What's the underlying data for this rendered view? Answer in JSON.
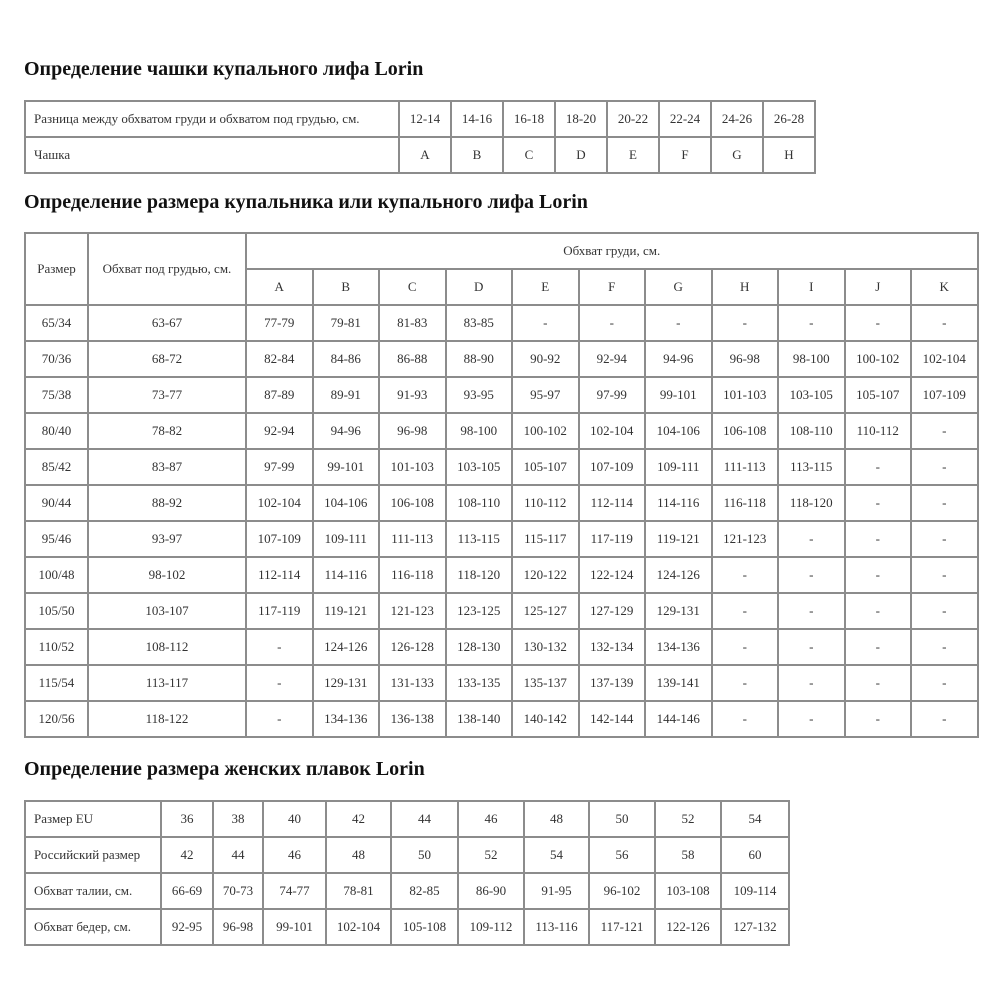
{
  "cup_section": {
    "title": "Определение чашки купального лифа Lorin",
    "rows": [
      {
        "label": "Разница между обхватом груди и обхватом под грудью, см.",
        "values": [
          "12-14",
          "14-16",
          "16-18",
          "18-20",
          "20-22",
          "22-24",
          "24-26",
          "26-28"
        ]
      },
      {
        "label": "Чашка",
        "values": [
          "A",
          "B",
          "C",
          "D",
          "E",
          "F",
          "G",
          "H"
        ]
      }
    ]
  },
  "bra_section": {
    "title": "Определение размера купальника или купального лифа Lorin",
    "header": {
      "size": "Размер",
      "underbust": "Обхват под грудью, см.",
      "bust": "Обхват груди, см.",
      "cups": [
        "A",
        "B",
        "C",
        "D",
        "E",
        "F",
        "G",
        "H",
        "I",
        "J",
        "K"
      ]
    },
    "rows": [
      {
        "size": "65/34",
        "underbust": "63-67",
        "values": [
          "77-79",
          "79-81",
          "81-83",
          "83-85",
          "-",
          "-",
          "-",
          "-",
          "-",
          "-",
          "-"
        ]
      },
      {
        "size": "70/36",
        "underbust": "68-72",
        "values": [
          "82-84",
          "84-86",
          "86-88",
          "88-90",
          "90-92",
          "92-94",
          "94-96",
          "96-98",
          "98-100",
          "100-102",
          "102-104"
        ]
      },
      {
        "size": "75/38",
        "underbust": "73-77",
        "values": [
          "87-89",
          "89-91",
          "91-93",
          "93-95",
          "95-97",
          "97-99",
          "99-101",
          "101-103",
          "103-105",
          "105-107",
          "107-109"
        ]
      },
      {
        "size": "80/40",
        "underbust": "78-82",
        "values": [
          "92-94",
          "94-96",
          "96-98",
          "98-100",
          "100-102",
          "102-104",
          "104-106",
          "106-108",
          "108-110",
          "110-112",
          "-"
        ]
      },
      {
        "size": "85/42",
        "underbust": "83-87",
        "values": [
          "97-99",
          "99-101",
          "101-103",
          "103-105",
          "105-107",
          "107-109",
          "109-111",
          "111-113",
          "113-115",
          "-",
          "-"
        ]
      },
      {
        "size": "90/44",
        "underbust": "88-92",
        "values": [
          "102-104",
          "104-106",
          "106-108",
          "108-110",
          "110-112",
          "112-114",
          "114-116",
          "116-118",
          "118-120",
          "-",
          "-"
        ]
      },
      {
        "size": "95/46",
        "underbust": "93-97",
        "values": [
          "107-109",
          "109-111",
          "111-113",
          "113-115",
          "115-117",
          "117-119",
          "119-121",
          "121-123",
          "-",
          "-",
          "-"
        ]
      },
      {
        "size": "100/48",
        "underbust": "98-102",
        "values": [
          "112-114",
          "114-116",
          "116-118",
          "118-120",
          "120-122",
          "122-124",
          "124-126",
          "-",
          "-",
          "-",
          "-"
        ]
      },
      {
        "size": "105/50",
        "underbust": "103-107",
        "values": [
          "117-119",
          "119-121",
          "121-123",
          "123-125",
          "125-127",
          "127-129",
          "129-131",
          "-",
          "-",
          "-",
          "-"
        ]
      },
      {
        "size": "110/52",
        "underbust": "108-112",
        "values": [
          "-",
          "124-126",
          "126-128",
          "128-130",
          "130-132",
          "132-134",
          "134-136",
          "-",
          "-",
          "-",
          "-"
        ]
      },
      {
        "size": "115/54",
        "underbust": "113-117",
        "values": [
          "-",
          "129-131",
          "131-133",
          "133-135",
          "135-137",
          "137-139",
          "139-141",
          "-",
          "-",
          "-",
          "-"
        ]
      },
      {
        "size": "120/56",
        "underbust": "118-122",
        "values": [
          "-",
          "134-136",
          "136-138",
          "138-140",
          "140-142",
          "142-144",
          "144-146",
          "-",
          "-",
          "-",
          "-"
        ]
      }
    ]
  },
  "briefs_section": {
    "title": "Определение размера женских плавок Lorin",
    "rows": [
      {
        "label": "Размер EU",
        "values": [
          "36",
          "38",
          "40",
          "42",
          "44",
          "46",
          "48",
          "50",
          "52",
          "54"
        ]
      },
      {
        "label": "Российский размер",
        "values": [
          "42",
          "44",
          "46",
          "48",
          "50",
          "52",
          "54",
          "56",
          "58",
          "60"
        ]
      },
      {
        "label": "Обхват талии, см.",
        "values": [
          "66-69",
          "70-73",
          "74-77",
          "78-81",
          "82-85",
          "86-90",
          "91-95",
          "96-102",
          "103-108",
          "109-114"
        ]
      },
      {
        "label": "Обхват бедер, см.",
        "values": [
          "92-95",
          "96-98",
          "99-101",
          "102-104",
          "105-108",
          "109-112",
          "113-116",
          "117-121",
          "122-126",
          "127-132"
        ]
      }
    ]
  }
}
